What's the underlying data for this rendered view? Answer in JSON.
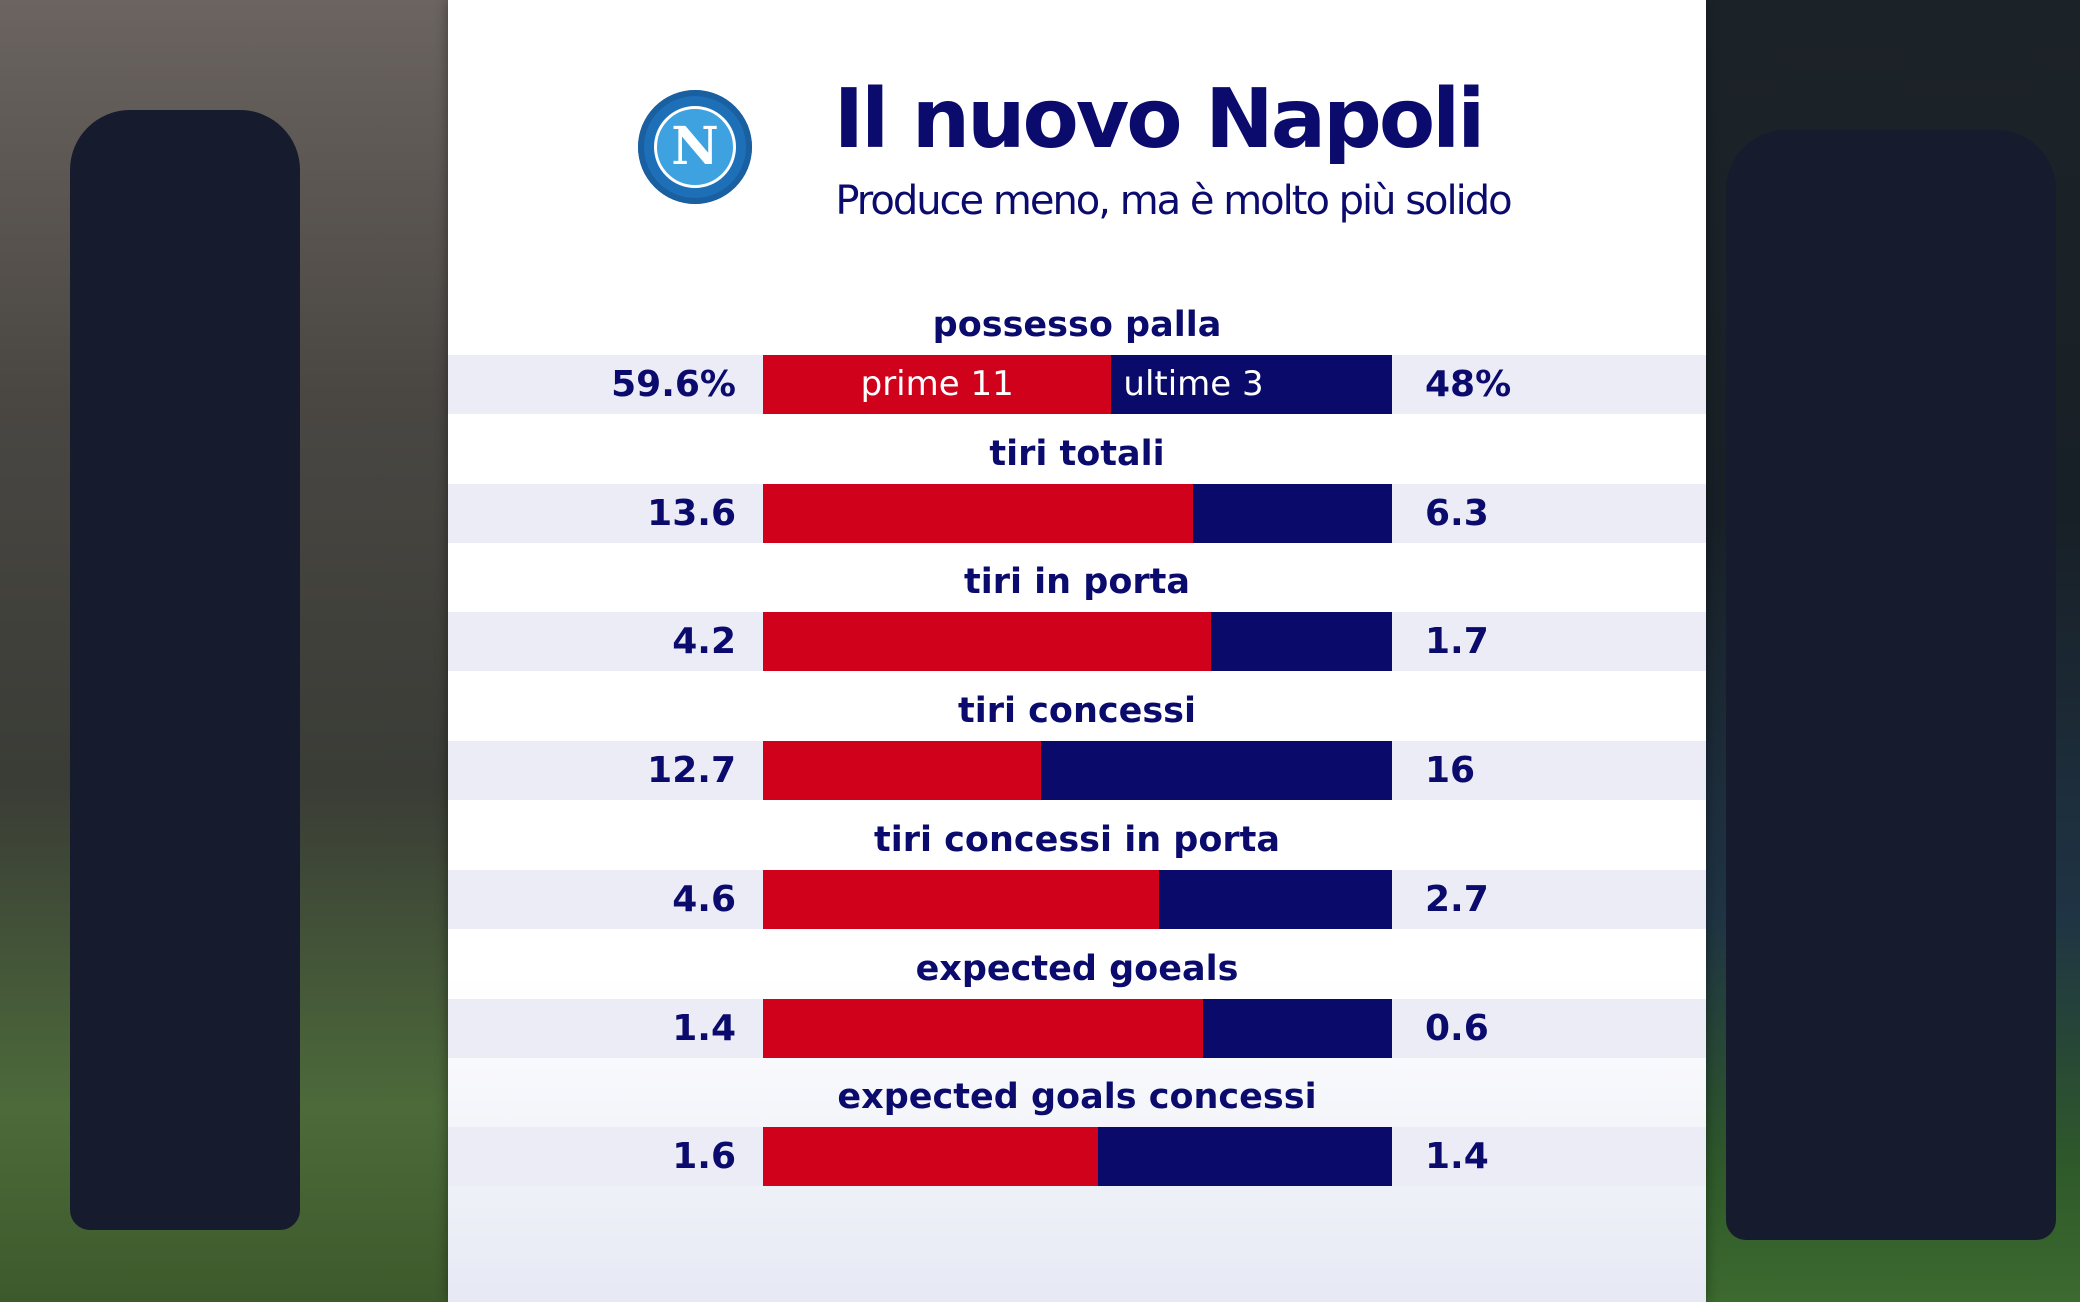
{
  "header": {
    "title": "Il nuovo Napoli",
    "subtitle": "Produce meno, ma è molto più solido",
    "logo_letter": "N"
  },
  "chart_data": {
    "type": "bar",
    "orientation": "horizontal-stacked-comparison",
    "title": "Il nuovo Napoli",
    "subtitle": "Produce meno, ma è molto più solido",
    "series": [
      {
        "name": "prime 11",
        "color": "#d0021b",
        "values": [
          59.6,
          13.6,
          4.2,
          12.7,
          4.6,
          1.4,
          1.6
        ]
      },
      {
        "name": "ultime 3",
        "color": "#0a0a6b",
        "values": [
          48,
          6.3,
          1.7,
          16,
          2.7,
          0.6,
          1.4
        ]
      }
    ],
    "categories": [
      "possesso palla",
      "tiri totali",
      "tiri in porta",
      "tiri concessi",
      "tiri concessi in porta",
      "expected goeals",
      "expected goals concessi"
    ],
    "value_labels_left": [
      "59.6%",
      "13.6",
      "4.2",
      "12.7",
      "4.6",
      "1.4",
      "1.6"
    ],
    "value_labels_right": [
      "48%",
      "6.3",
      "1.7",
      "16",
      "2.7",
      "0.6",
      "1.4"
    ]
  }
}
